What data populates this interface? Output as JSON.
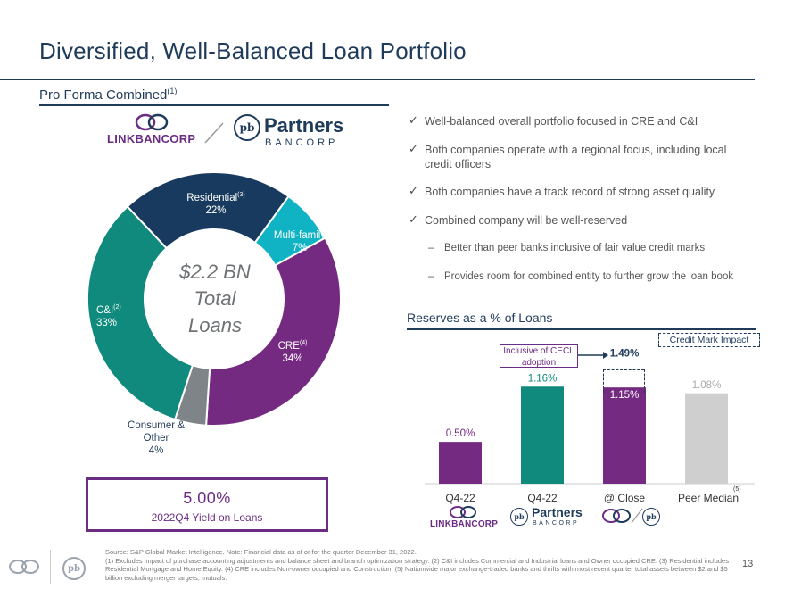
{
  "title": "Diversified, Well-Balanced Loan Portfolio",
  "left_section": {
    "subtitle": "Pro Forma Combined",
    "subtitle_sup": "(1)",
    "logo_link": "LINKBANCORP",
    "logo_partners": "Partners",
    "logo_bancorp": "BANCORP",
    "logo_pb": "pb",
    "center_line1": "$2.2 BN",
    "center_line2": "Total",
    "center_line3": "Loans",
    "yield_value": "5.00%",
    "yield_label": "2022Q4 Yield on Loans"
  },
  "donut": {
    "slices": [
      {
        "name": "Residential",
        "sup": "(3)",
        "pct": "22%",
        "value": 22,
        "color": "#173a5e"
      },
      {
        "name": "Multi-family",
        "sup": "",
        "pct": "7%",
        "value": 7,
        "color": "#10b3c3"
      },
      {
        "name": "CRE",
        "sup": "(4)",
        "pct": "34%",
        "value": 34,
        "color": "#752a81"
      },
      {
        "name": "Consumer & Other",
        "sup": "",
        "pct": "4%",
        "value": 4,
        "color": "#7e8488"
      },
      {
        "name": "C&I",
        "sup": "(2)",
        "pct": "33%",
        "value": 33,
        "color": "#0f8a7c"
      }
    ]
  },
  "bullets": [
    "Well-balanced overall portfolio focused in CRE and C&I",
    "Both companies operate with a regional focus, including local credit officers",
    "Both companies have a track record of strong asset quality",
    "Combined company will be well-reserved"
  ],
  "sub_bullets": [
    "Better than peer banks inclusive of fair value credit marks",
    "Provides room for combined entity to further grow the loan book"
  ],
  "chart_data": {
    "type": "bar",
    "title": "Reserves as a % of Loans",
    "categories": [
      "Q4-22",
      "Q4-22",
      "@ Close",
      "Peer Median"
    ],
    "values": [
      0.5,
      1.16,
      1.15,
      1.08
    ],
    "labels": [
      "0.50%",
      "1.16%",
      "1.15%",
      "1.08%"
    ],
    "colors": [
      "#752a81",
      "#0f8a7c",
      "#752a81",
      "#cfcfcf"
    ],
    "stacked_extra": {
      "category_index": 2,
      "total": 1.49,
      "label": "1.49%"
    },
    "peer_sup": "(5)",
    "callout_cecl": "Inclusive of CECL adoption",
    "callout_credit_mark": "Credit Mark Impact",
    "ylim": [
      0,
      1.6
    ]
  },
  "bottom_logos": {
    "link": "LINKBANCORP",
    "partners": "Partners",
    "bancorp": "BANCORP"
  },
  "footer": {
    "line1": "Source: S&P Global Market Intelligence. Note: Financial data as of or for the quarter December 31, 2022.",
    "line2": "(1) Excludes impact of purchase accounting adjustments and balance sheet and branch optimization strategy. (2) C&I includes Commercial and Industrial loans and Owner occupied CRE. (3) Residential includes Residential Mortgage and Home Equity. (4) CRE includes Non-owner occupied and Construction. (5) Nationwide major exchange-traded banks and thrifts with most recent quarter total assets between $2 and $5 billion excluding merger targets, mutuals."
  },
  "page_number": "13"
}
